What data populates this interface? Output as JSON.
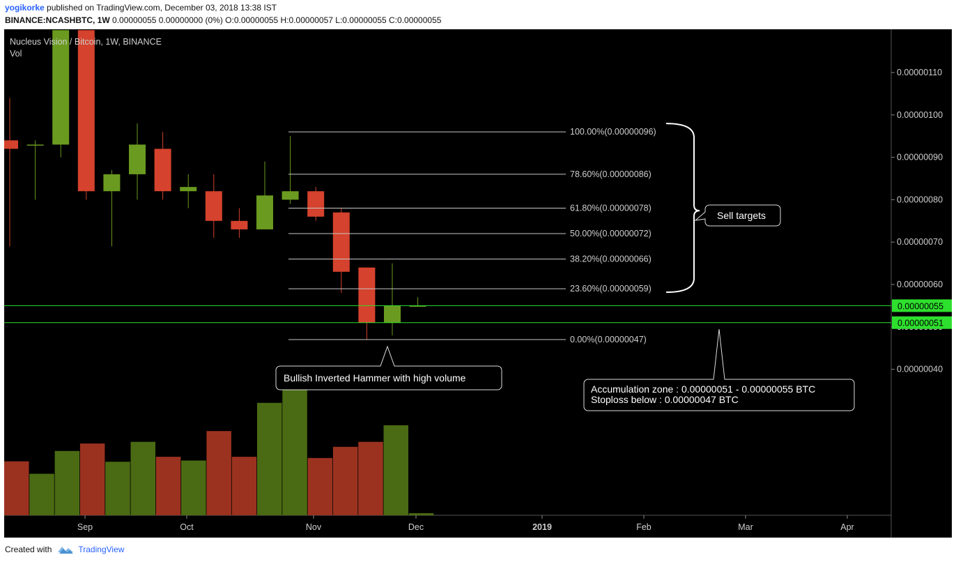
{
  "header": {
    "author": "yogikorke",
    "published": "published on TradingView.com, December 03, 2018 13:38 IST",
    "symbol": "BINANCE:NCASHBTC, 1W",
    "ohlc": "0.00000055 0.00000000 (0%) O:0.00000055 H:0.00000057 L:0.00000055 C:0.00000055"
  },
  "footer": {
    "created_with": "Created with",
    "brand": "TradingView"
  },
  "chart_data": {
    "type": "candlestick",
    "title": "Nucleus Vision / Bitcoin, 1W, BINANCE",
    "volume_label": "Vol",
    "price_unit": "BTC",
    "ylim": [
      3.5e-07,
      1.18e-06
    ],
    "y_ticks": [
      "0.00000040",
      "0.00000050",
      "0.00000060",
      "0.00000070",
      "0.00000080",
      "0.00000090",
      "0.00000100",
      "0.00000110"
    ],
    "x_ticks": [
      "Sep",
      "Oct",
      "Nov",
      "Dec",
      "2019",
      "Feb",
      "Mar",
      "Apr"
    ],
    "colors": {
      "up": "#6a9a1f",
      "down": "#d5422d",
      "vol_up": "#4a6b13",
      "vol_down": "#9b3220",
      "zone": "#2ee02e",
      "fib": "#c8c8c8",
      "text": "#cfcfcf",
      "background": "#000000"
    },
    "candles": [
      {
        "o": 9.4e-07,
        "h": 1.04e-06,
        "l": 6.9e-07,
        "c": 9.2e-07,
        "vol": 1.3e-07
      },
      {
        "o": 9.3e-07,
        "h": 9.4e-07,
        "l": 8e-07,
        "c": 9.3e-07,
        "vol": 1e-07
      },
      {
        "o": 9.3e-07,
        "h": 1.2e-06,
        "l": 9e-07,
        "c": 1.2e-06,
        "vol": 1.55e-07
      },
      {
        "o": 1.2e-06,
        "h": 1.2e-06,
        "l": 8e-07,
        "c": 8.2e-07,
        "vol": 1.73e-07
      },
      {
        "o": 8.2e-07,
        "h": 8.7e-07,
        "l": 6.9e-07,
        "c": 8.6e-07,
        "vol": 1.29e-07
      },
      {
        "o": 8.6e-07,
        "h": 9.8e-07,
        "l": 8e-07,
        "c": 9.3e-07,
        "vol": 1.77e-07
      },
      {
        "o": 9.2e-07,
        "h": 9.6e-07,
        "l": 8e-07,
        "c": 8.2e-07,
        "vol": 1.41e-07
      },
      {
        "o": 8.2e-07,
        "h": 8.6e-07,
        "l": 7.8e-07,
        "c": 8.3e-07,
        "vol": 1.32e-07
      },
      {
        "o": 8.2e-07,
        "h": 8.6e-07,
        "l": 7.1e-07,
        "c": 7.5e-07,
        "vol": 2.03e-07
      },
      {
        "o": 7.5e-07,
        "h": 7.8e-07,
        "l": 7.1e-07,
        "c": 7.3e-07,
        "vol": 1.41e-07
      },
      {
        "o": 7.3e-07,
        "h": 8.9e-07,
        "l": 7.3e-07,
        "c": 8.1e-07,
        "vol": 2.71e-07
      },
      {
        "o": 8e-07,
        "h": 9.5e-07,
        "l": 7.9e-07,
        "c": 8.2e-07,
        "vol": 3.35e-07
      },
      {
        "o": 8.2e-07,
        "h": 8.3e-07,
        "l": 7.5e-07,
        "c": 7.6e-07,
        "vol": 1.38e-07
      },
      {
        "o": 7.7e-07,
        "h": 7.8e-07,
        "l": 5.8e-07,
        "c": 6.3e-07,
        "vol": 1.65e-07
      },
      {
        "o": 6.4e-07,
        "h": 6.4e-07,
        "l": 4.7e-07,
        "c": 5.1e-07,
        "vol": 1.77e-07
      },
      {
        "o": 5.1e-07,
        "h": 6.5e-07,
        "l": 4.8e-07,
        "c": 5.5e-07,
        "vol": 2.17e-07
      },
      {
        "o": 5.5e-07,
        "h": 5.7e-07,
        "l": 5.5e-07,
        "c": 5.5e-07,
        "vol": 5e-09
      }
    ],
    "fib_levels": [
      {
        "label": "100.00%(0.00000096)",
        "price": 9.6e-07
      },
      {
        "label": "78.60%(0.00000086)",
        "price": 8.6e-07
      },
      {
        "label": "61.80%(0.00000078)",
        "price": 7.8e-07
      },
      {
        "label": "50.00%(0.00000072)",
        "price": 7.2e-07
      },
      {
        "label": "38.20%(0.00000066)",
        "price": 6.6e-07
      },
      {
        "label": "23.60%(0.00000059)",
        "price": 5.9e-07
      },
      {
        "label": "0.00%(0.00000047)",
        "price": 4.7e-07
      }
    ],
    "zone_lines": [
      {
        "label": "0.00000055",
        "price": 5.5e-07
      },
      {
        "label": "0.00000051",
        "price": 5.1e-07
      }
    ],
    "annotations": {
      "sell_targets": "Sell targets",
      "hammer": "Bullish Inverted Hammer with high volume",
      "accumulation": "Accumulation zone : 0.00000051 - 0.00000055 BTC",
      "stoploss": "Stoploss below : 0.00000047 BTC"
    }
  }
}
